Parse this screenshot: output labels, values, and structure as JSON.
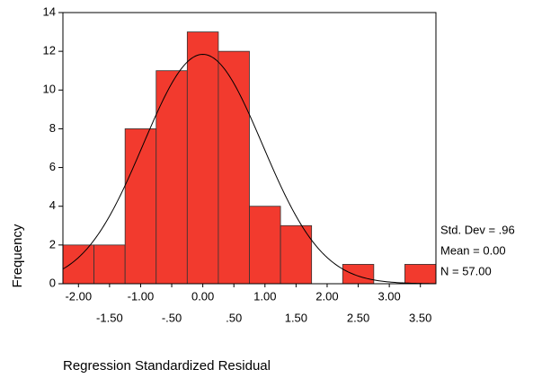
{
  "chart_data": {
    "type": "histogram",
    "bins": [
      -2.25,
      -1.75,
      -1.25,
      -0.75,
      -0.25,
      0.25,
      0.75,
      1.25,
      1.75,
      2.25,
      2.75,
      3.25,
      3.75
    ],
    "values": [
      2,
      2,
      8,
      11,
      13,
      12,
      4,
      3,
      0,
      1,
      0,
      1
    ],
    "color": "#f23a2e",
    "xlim": [
      -2.25,
      3.75
    ],
    "xticks": [
      {
        "value": -2,
        "label": "-2.00"
      },
      {
        "value": -1.5,
        "label": "-1.50"
      },
      {
        "value": -1,
        "label": "-1.00"
      },
      {
        "value": -0.5,
        "label": "-.50"
      },
      {
        "value": 0,
        "label": "0.00"
      },
      {
        "value": 0.5,
        "label": ".50"
      },
      {
        "value": 1,
        "label": "1.00"
      },
      {
        "value": 1.5,
        "label": "1.50"
      },
      {
        "value": 2,
        "label": "2.00"
      },
      {
        "value": 2.5,
        "label": "2.50"
      },
      {
        "value": 3,
        "label": "3.00"
      },
      {
        "value": 3.5,
        "label": "3.50"
      }
    ],
    "ylim": [
      0,
      14
    ],
    "yticks": [
      0,
      2,
      4,
      6,
      8,
      10,
      12,
      14
    ],
    "xlabel": "Regression Standardized Residual",
    "ylabel": "Frequency",
    "stats": [
      {
        "value": 0.96,
        "label": "Std. Dev = .96"
      },
      {
        "value": 0,
        "label": "Mean = 0.00"
      },
      {
        "value": 57,
        "label": "N = 57.00"
      }
    ]
  }
}
